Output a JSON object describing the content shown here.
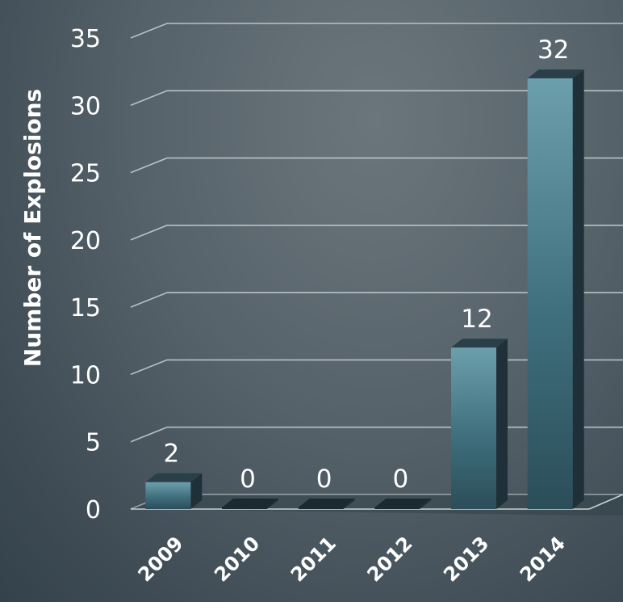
{
  "chart_data": {
    "type": "bar",
    "categories": [
      "2009",
      "2010",
      "2011",
      "2012",
      "2013",
      "2014"
    ],
    "values": [
      2,
      0,
      0,
      0,
      12,
      32
    ],
    "data_labels": [
      "2",
      "0",
      "0",
      "0",
      "12",
      "32"
    ],
    "title": "",
    "xlabel": "",
    "ylabel": "Number of  Explosions",
    "ylim": [
      0,
      35
    ],
    "yticks": [
      "0",
      "5",
      "10",
      "15",
      "20",
      "25",
      "30",
      "35"
    ],
    "grid": true,
    "style": "3d-columns",
    "bar_color": "#4f8594",
    "gridline_color": "#c9d2d6"
  }
}
